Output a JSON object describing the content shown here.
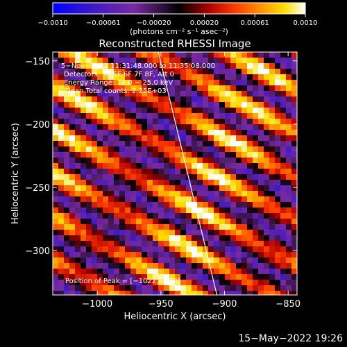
{
  "chart_data": {
    "type": "heatmap",
    "title": "Reconstructed RHESSI Image",
    "xlabel": "Heliocentric X (arcsec)",
    "ylabel": "Heliocentric Y (arcsec)",
    "xlim": [
      -1035,
      -843
    ],
    "ylim": [
      -335,
      -143
    ],
    "xticks": [
      -1000,
      -950,
      -900,
      -850
    ],
    "xtick_labels": [
      "−1000",
      "−950",
      "−900",
      "−850"
    ],
    "yticks": [
      -150,
      -200,
      -250,
      -300
    ],
    "ytick_labels": [
      "−150",
      "−200",
      "−250",
      "−300"
    ],
    "colorbar": {
      "range": [
        -0.001,
        0.001
      ],
      "tick_labels": [
        "−0.0010",
        "−0.00061",
        "−0.00020",
        "0.00020",
        "0.00061",
        "0.0010"
      ],
      "units": "(photons cm⁻² s⁻¹ asec⁻²)",
      "colors": [
        "#0000ff",
        "#3a18c8",
        "#7a2aa0",
        "#000000",
        "#b00000",
        "#ff3a00",
        "#ff9000",
        "#ffe000",
        "#ffffff"
      ]
    },
    "annotations": {
      "time_range": "5−Nov−2012 11:31:48.000 to 11:35:08.000",
      "detectors": "Detectors: 3F 5F 6F 7F 8F, Att 0",
      "energy": "Energy Range: 12.0 − 25.0 keV",
      "clean": "Clean    Total counts: 2.25E+03",
      "peak": "Position of Peak = [−1022,−230]"
    },
    "limb_line": [
      [
        -952,
        -143
      ],
      [
        -906,
        -335
      ]
    ]
  },
  "footer": {
    "timestamp": "15−May−2022 19:26"
  }
}
